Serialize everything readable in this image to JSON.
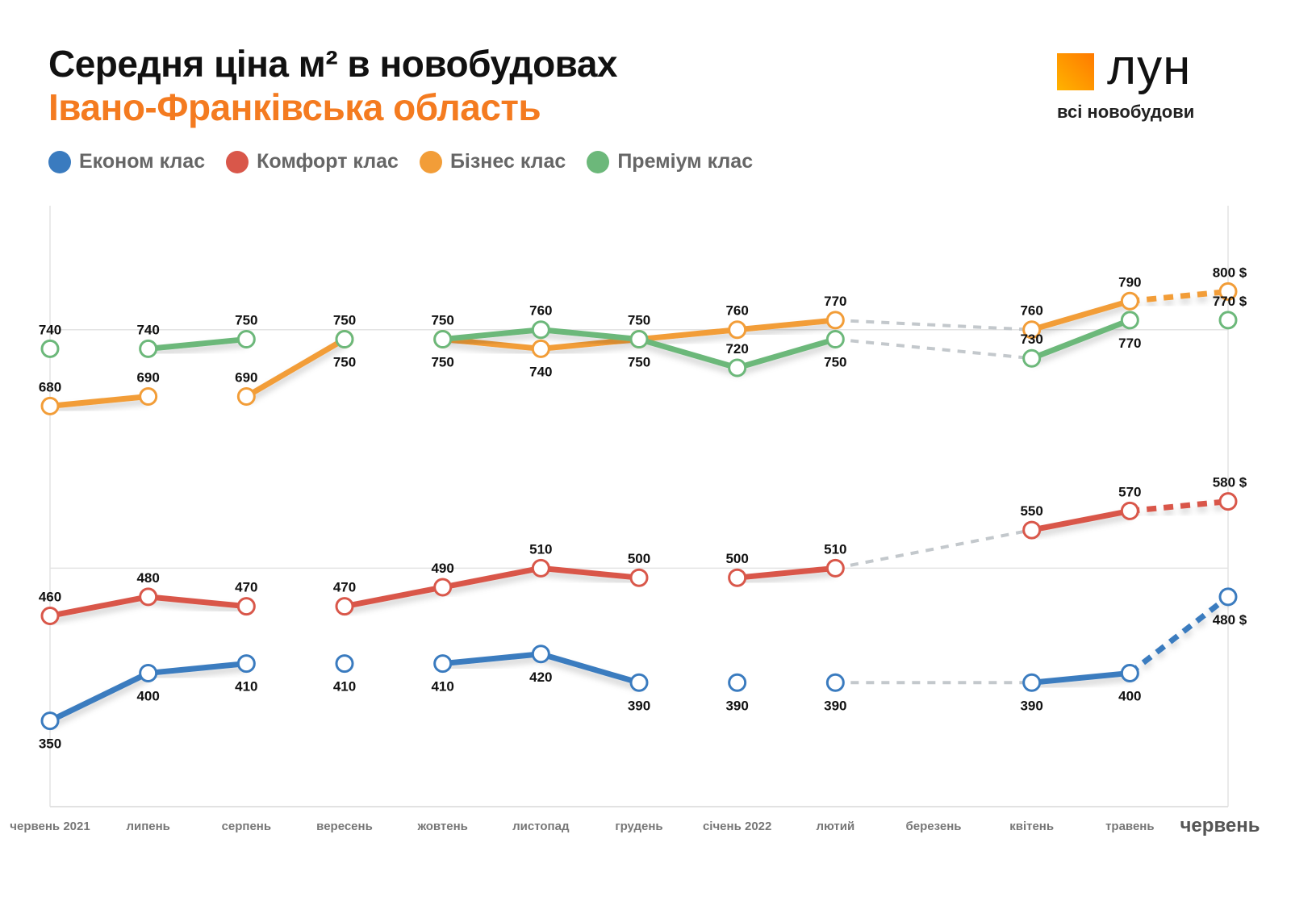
{
  "title": "Середня ціна м² в новобудовах",
  "subtitle": "Івано-Франківська область",
  "logo": {
    "word": "лун",
    "tagline": "всі новобудови"
  },
  "chart_data": {
    "type": "line",
    "title": "Середня ціна м² в новобудовах",
    "subtitle": "Івано-Франківська область",
    "unit": "$",
    "categories": [
      "червень 2021",
      "липень",
      "серпень",
      "вересень",
      "жовтень",
      "листопад",
      "грудень",
      "січень 2022",
      "лютий",
      "березень",
      "квітень",
      "травень",
      "червень"
    ],
    "ylim": [
      260,
      890
    ],
    "grid": "horizontal",
    "gridlines": [
      260,
      510,
      760
    ],
    "legend_position": "top-left",
    "gap_color": "#c3c8cc",
    "series": [
      {
        "name": "Економ клас",
        "color": "#3a7bbf",
        "values": [
          350,
          400,
          410,
          410,
          410,
          420,
          390,
          390,
          390,
          null,
          390,
          400,
          480
        ],
        "label_pos": "below"
      },
      {
        "name": "Комфорт клас",
        "color": "#d9574a",
        "values": [
          460,
          480,
          470,
          470,
          490,
          510,
          500,
          500,
          510,
          null,
          550,
          570,
          580
        ],
        "label_pos": "above"
      },
      {
        "name": "Бізнес клас",
        "color": "#f29d38",
        "values": [
          680,
          690,
          690,
          750,
          750,
          740,
          750,
          760,
          770,
          null,
          760,
          790,
          800
        ],
        "label_pos": "above"
      },
      {
        "name": "Преміум клас",
        "color": "#6cb87a",
        "values": [
          740,
          740,
          750,
          750,
          750,
          760,
          750,
          720,
          750,
          null,
          730,
          770,
          770
        ],
        "label_pos": "above"
      }
    ]
  }
}
